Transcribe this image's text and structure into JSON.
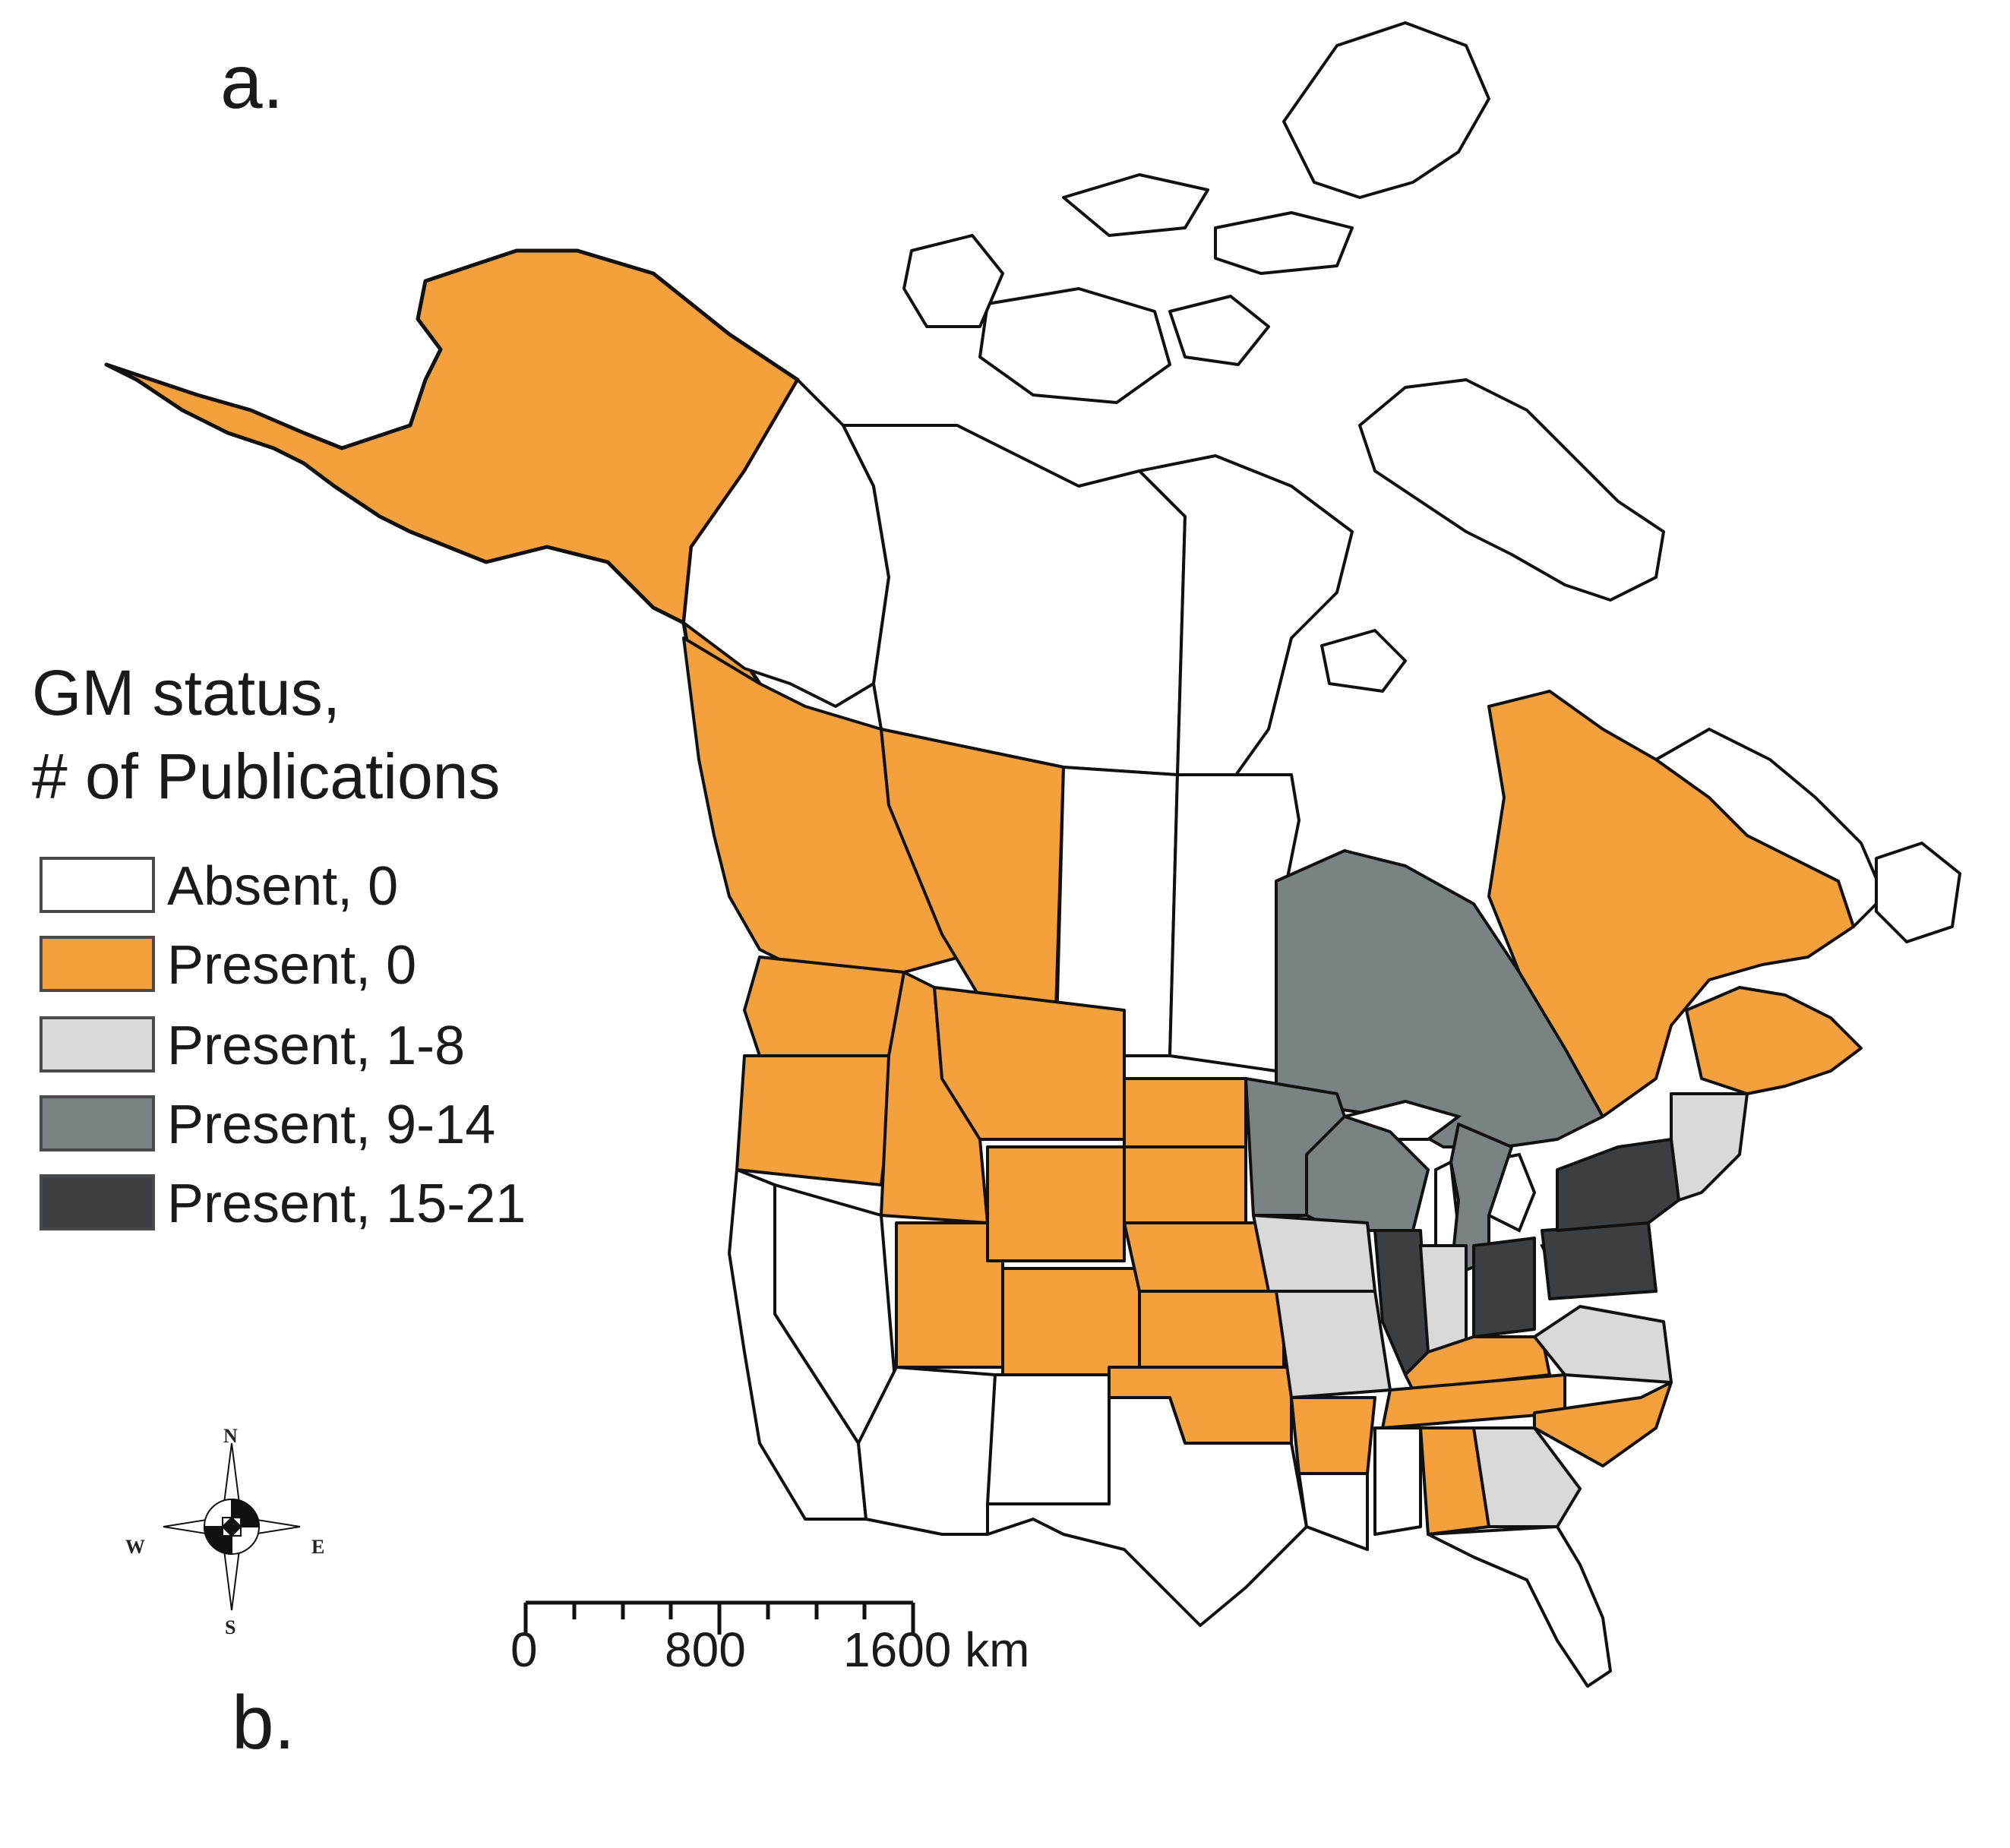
{
  "panel_labels": {
    "top": "a.",
    "bottom": "b."
  },
  "legend": {
    "title_line1": "GM status,",
    "title_line2": "# of Publications",
    "items": [
      {
        "label": "Absent, 0",
        "color": "#ffffff"
      },
      {
        "label": "Present, 0",
        "color": "#f4a03c"
      },
      {
        "label": "Present, 1-8",
        "color": "#d9d9d9"
      },
      {
        "label": "Present, 9-14",
        "color": "#7b8284"
      },
      {
        "label": "Present, 15-21",
        "color": "#3c3f41"
      }
    ]
  },
  "scale_bar": {
    "labels": [
      "0",
      "800",
      "1600 km"
    ]
  },
  "compass": {
    "n": "N",
    "s": "S",
    "e": "E",
    "w": "W"
  },
  "colors": {
    "absent": "#ffffff",
    "present_0": "#f4a03c",
    "present_1_8": "#d9d9d9",
    "present_9_14": "#7b8284",
    "present_15_21": "#3c3f41",
    "outline": "#111111"
  }
}
